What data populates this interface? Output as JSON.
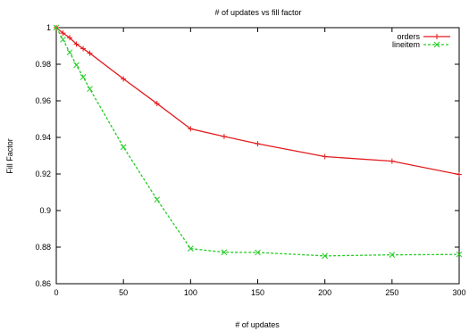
{
  "chart_data": {
    "type": "line",
    "title": "# of updates vs fill factor",
    "xlabel": "# of updates",
    "ylabel": "Fill Factor",
    "xlim": [
      0,
      300
    ],
    "ylim": [
      0.86,
      1.0
    ],
    "xticks": [
      0,
      50,
      100,
      150,
      200,
      250,
      300
    ],
    "yticks": [
      0.86,
      0.88,
      0.9,
      0.92,
      0.94,
      0.96,
      0.98,
      1
    ],
    "xtick_labels": [
      "0",
      "50",
      "100",
      "150",
      "200",
      "250",
      "300"
    ],
    "ytick_labels": [
      "0.86",
      "0.88",
      "0.9",
      "0.92",
      "0.94",
      "0.96",
      "0.98",
      "1"
    ],
    "grid": false,
    "legend_position": "top-right",
    "series": [
      {
        "name": "orders",
        "color": "#e41a1c",
        "marker": "plus",
        "x": [
          0,
          5,
          10,
          15,
          20,
          25,
          50,
          75,
          100,
          125,
          150,
          200,
          250,
          300
        ],
        "y": [
          1.0,
          0.997,
          0.9945,
          0.991,
          0.9885,
          0.986,
          0.972,
          0.9585,
          0.9447,
          0.9405,
          0.9365,
          0.9295,
          0.927,
          0.9197
        ]
      },
      {
        "name": "lineitem",
        "color": "#22cc22",
        "marker": "x",
        "dashed": true,
        "x": [
          0,
          5,
          10,
          15,
          20,
          25,
          50,
          75,
          100,
          125,
          150,
          200,
          250,
          300
        ],
        "y": [
          1.0,
          0.9935,
          0.9865,
          0.9795,
          0.973,
          0.9665,
          0.9347,
          0.906,
          0.8792,
          0.8772,
          0.8771,
          0.8752,
          0.8758,
          0.876
        ]
      }
    ]
  }
}
